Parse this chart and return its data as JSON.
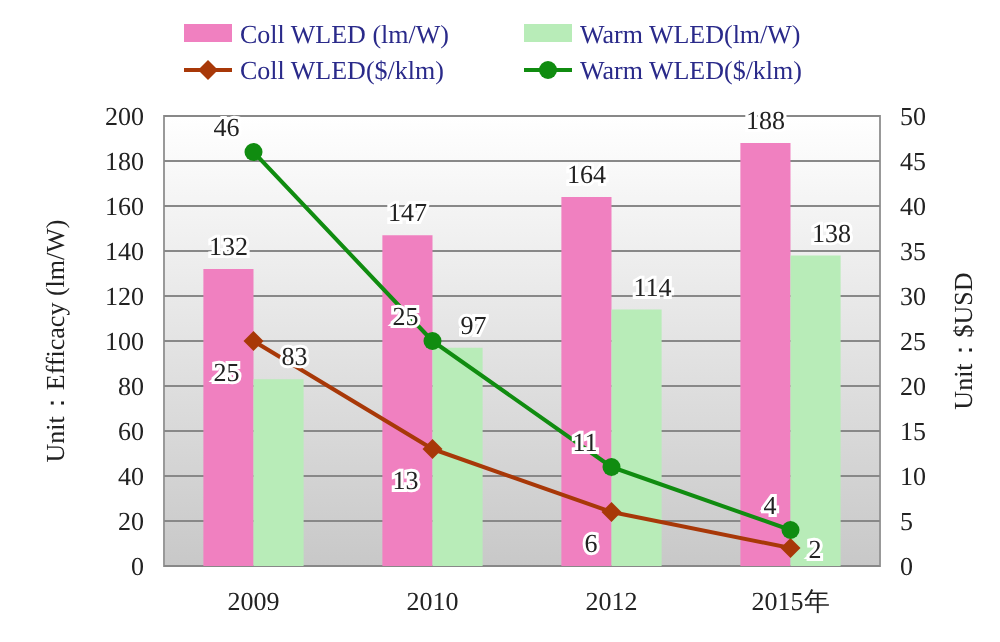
{
  "chart_data": {
    "type": "bar",
    "categories": [
      "2009",
      "2010",
      "2012",
      "2015年"
    ],
    "ylabel": "Unit：Efficacy (lm/W)",
    "y2label": "Unit：$USD",
    "ylim": [
      0,
      200
    ],
    "yticks": [
      0,
      20,
      40,
      60,
      80,
      100,
      120,
      140,
      160,
      180,
      200
    ],
    "y2lim": [
      0,
      50
    ],
    "y2ticks": [
      0,
      5,
      10,
      15,
      20,
      25,
      30,
      35,
      40,
      45,
      50
    ],
    "grid": "y",
    "legend": "top",
    "data_labels": true,
    "series": [
      {
        "name": "Coll WLED (lm/W)",
        "color": "#f080c0",
        "values": [
          132,
          147,
          164,
          188
        ]
      },
      {
        "name": "Warm WLED(lm/W)",
        "color": "#b8ecb8",
        "values": [
          83,
          97,
          114,
          138
        ]
      },
      {
        "name": "Coll WLED($/klm)",
        "type": "line",
        "axis": "y2",
        "marker": "diamond",
        "color": "#a83808",
        "values": [
          25,
          13,
          6,
          2
        ]
      },
      {
        "name": "Warm WLED($/klm)",
        "type": "line",
        "axis": "y2",
        "marker": "circle",
        "color": "#108c10",
        "values": [
          46,
          25,
          11,
          4
        ]
      }
    ]
  }
}
